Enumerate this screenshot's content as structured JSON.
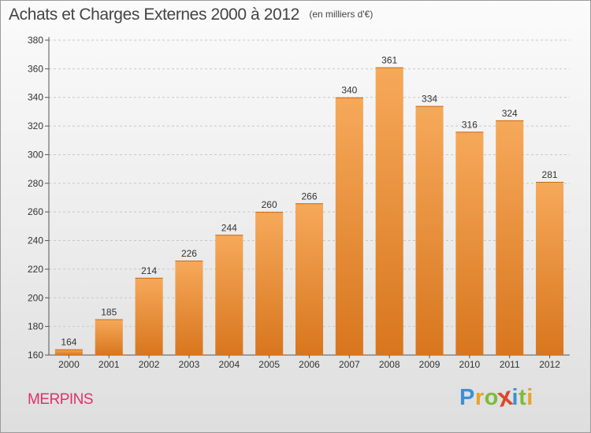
{
  "title": "Achats et Charges Externes 2000 à 2012",
  "subtitle": "(en milliers d'€)",
  "location": "MERPINS",
  "brand": {
    "letters": [
      {
        "ch": "P",
        "color": "#3d8fd6"
      },
      {
        "ch": "r",
        "color": "#e8a326"
      },
      {
        "ch": "o",
        "color": "#7dbb3a"
      },
      {
        "ch": "x",
        "color": "#d94a2b"
      },
      {
        "ch": "i",
        "color": "#3d8fd6"
      },
      {
        "ch": "t",
        "color": "#7dbb3a"
      },
      {
        "ch": "i",
        "color": "#e8a326"
      }
    ]
  },
  "colors": {
    "bar_top": "#f6a95a",
    "bar_bottom": "#d8761e",
    "grid": "#c8c8c8",
    "axis": "#555555",
    "text": "#333333",
    "location": "#e0306b"
  },
  "chart_data": {
    "type": "bar",
    "title": "Achats et Charges Externes 2000 à 2012",
    "subtitle": "(en milliers d'€)",
    "categories": [
      "2000",
      "2001",
      "2002",
      "2003",
      "2004",
      "2005",
      "2006",
      "2007",
      "2008",
      "2009",
      "2010",
      "2011",
      "2012"
    ],
    "values": [
      164,
      185,
      214,
      226,
      244,
      260,
      266,
      340,
      361,
      334,
      316,
      324,
      281
    ],
    "ylim": [
      160,
      380
    ],
    "yticks": [
      160,
      180,
      200,
      220,
      240,
      260,
      280,
      300,
      320,
      340,
      360,
      380
    ],
    "grid": "horizontal dashed",
    "legend": "none",
    "data_labels": true
  }
}
